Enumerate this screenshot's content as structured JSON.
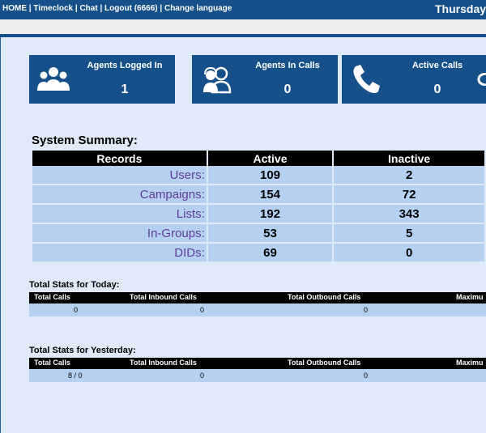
{
  "topbar": {
    "nav": [
      "HOME",
      "Timeclock",
      "Chat",
      "Logout (6666)",
      "Change language"
    ],
    "separator": " | ",
    "date": "Thursday"
  },
  "cards": [
    {
      "title": "Agents Logged In",
      "value": "1",
      "icon": "agents-group-icon"
    },
    {
      "title": "Agents In Calls",
      "value": "0",
      "icon": "agents-headset-icon"
    },
    {
      "title": "Active Calls",
      "value": "0",
      "icon": "phone-icon"
    }
  ],
  "summary": {
    "title": "System Summary:",
    "headers": [
      "Records",
      "Active",
      "Inactive"
    ],
    "rows": [
      {
        "label": "Users:",
        "active": "109",
        "inactive": "2"
      },
      {
        "label": "Campaigns:",
        "active": "154",
        "inactive": "72"
      },
      {
        "label": "Lists:",
        "active": "192",
        "inactive": "343"
      },
      {
        "label": "In-Groups:",
        "active": "53",
        "inactive": "5"
      },
      {
        "label": "DIDs:",
        "active": "69",
        "inactive": "0"
      }
    ]
  },
  "today": {
    "title": "Total Stats for Today:",
    "headers": [
      "Total Calls",
      "Total Inbound Calls",
      "Total Outbound Calls",
      "Maximu"
    ],
    "values": [
      "0",
      "0",
      "0"
    ]
  },
  "yesterday": {
    "title": "Total Stats for Yesterday:",
    "headers": [
      "Total Calls",
      "Total Inbound Calls",
      "Total Outbound Calls",
      "Maximu"
    ],
    "values": [
      "8 / 0",
      "0",
      "0"
    ]
  }
}
